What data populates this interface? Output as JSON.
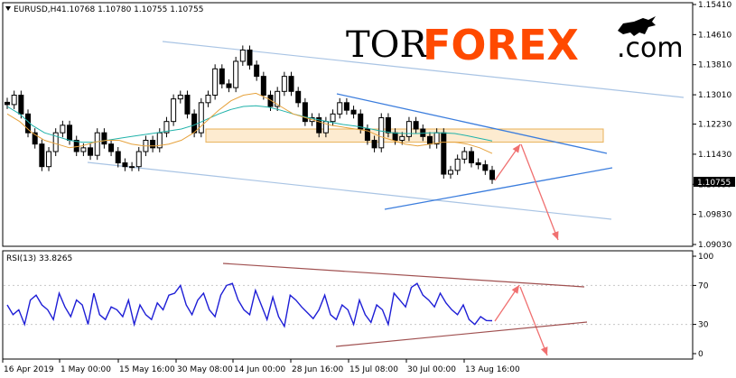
{
  "header": {
    "symbol": "EURUSD,H4",
    "ohlc": "1.10768 1.10780 1.10755 1.10755",
    "rsi_label": "RSI(13) 33.8265"
  },
  "logo": {
    "tor": "TOR",
    "forex": "FOREX",
    "com": ".com",
    "icon": "bull-icon"
  },
  "colors": {
    "candles": "#000000",
    "ma_fast": "#e6a23c",
    "ma_slow": "#20b2aa",
    "channel": "#a9c4e4",
    "trendline": "#3b7ddd",
    "zone_fill": "#fde6c4",
    "zone_border": "#e8b25a",
    "forecast_arrow": "#f07070",
    "rsi_line": "#1e1ed6",
    "rsi_trend": "#a05050",
    "price_tag_bg": "#000000",
    "price_tag_fg": "#ffffff"
  },
  "chart_data": [
    {
      "type": "candlestick",
      "title": "EURUSD,H4",
      "price_labels": [
        "1.15410",
        "1.14610",
        "1.13810",
        "1.13010",
        "1.12230",
        "1.11430",
        "1.10630",
        "1.09830",
        "1.09030"
      ],
      "current_price": "1.10755",
      "x_tick_labels": [
        "16 Apr 2019",
        "1 May 00:00",
        "15 May 16:00",
        "30 May 08:00",
        "14 Jun 00:00",
        "28 Jun 16:00",
        "15 Jul 08:00",
        "30 Jul 00:00",
        "13 Aug 16:00"
      ],
      "ylim": [
        1.0903,
        1.1541
      ],
      "close_series": [
        1.1275,
        1.13,
        1.125,
        1.12,
        1.117,
        1.111,
        1.115,
        1.12,
        1.122,
        1.118,
        1.115,
        1.116,
        1.114,
        1.12,
        1.117,
        1.115,
        1.112,
        1.111,
        1.111,
        1.115,
        1.118,
        1.116,
        1.12,
        1.123,
        1.129,
        1.13,
        1.125,
        1.12,
        1.128,
        1.13,
        1.137,
        1.133,
        1.132,
        1.139,
        1.142,
        1.138,
        1.135,
        1.13,
        1.127,
        1.131,
        1.135,
        1.131,
        1.128,
        1.123,
        1.124,
        1.12,
        1.123,
        1.125,
        1.128,
        1.126,
        1.125,
        1.121,
        1.118,
        1.116,
        1.124,
        1.12,
        1.118,
        1.119,
        1.123,
        1.121,
        1.119,
        1.117,
        1.12,
        1.109,
        1.11,
        1.113,
        1.115,
        1.112,
        1.1115,
        1.11,
        1.1076
      ],
      "zone": {
        "from_index": 28,
        "to_index": 85,
        "top": 1.121,
        "bottom": 1.1175
      },
      "ma_fast": [
        1.125,
        1.123,
        1.12,
        1.118,
        1.117,
        1.116,
        1.1165,
        1.1175,
        1.118,
        1.118,
        1.117,
        1.1165,
        1.1165,
        1.117,
        1.118,
        1.12,
        1.123,
        1.126,
        1.1285,
        1.13,
        1.1305,
        1.129,
        1.127,
        1.125,
        1.124,
        1.123,
        1.122,
        1.1215,
        1.121,
        1.1205,
        1.119,
        1.118,
        1.117,
        1.1165,
        1.117,
        1.1175,
        1.1175,
        1.117,
        1.116,
        1.1145
      ],
      "ma_slow": [
        1.127,
        1.125,
        1.122,
        1.12,
        1.119,
        1.118,
        1.1175,
        1.1175,
        1.118,
        1.1185,
        1.119,
        1.1195,
        1.12,
        1.1205,
        1.121,
        1.122,
        1.1235,
        1.125,
        1.1262,
        1.127,
        1.1272,
        1.1268,
        1.126,
        1.125,
        1.1242,
        1.1235,
        1.1228,
        1.1222,
        1.1218,
        1.1212,
        1.1205,
        1.12,
        1.1198,
        1.1198,
        1.12,
        1.12,
        1.1198,
        1.1192,
        1.1185,
        1.1178
      ]
    },
    {
      "type": "line",
      "title": "RSI(13) 33.8265",
      "y_tick_labels": [
        "100",
        "70",
        "30",
        "0"
      ],
      "ylim": [
        0,
        100
      ],
      "current_value": 33.8265,
      "values": [
        50,
        40,
        45,
        30,
        55,
        60,
        50,
        45,
        35,
        62,
        48,
        38,
        55,
        50,
        30,
        62,
        40,
        35,
        48,
        45,
        38,
        55,
        30,
        50,
        40,
        35,
        52,
        45,
        60,
        62,
        70,
        50,
        40,
        55,
        62,
        45,
        38,
        60,
        70,
        72,
        55,
        45,
        40,
        65,
        50,
        35,
        58,
        38,
        28,
        60,
        55,
        48,
        42,
        36,
        45,
        60,
        40,
        35,
        50,
        45,
        30,
        55,
        40,
        32,
        50,
        45,
        30,
        62,
        55,
        48,
        68,
        72,
        60,
        55,
        48,
        62,
        52,
        45,
        40,
        50,
        35,
        30,
        38,
        34,
        33.8
      ]
    }
  ]
}
